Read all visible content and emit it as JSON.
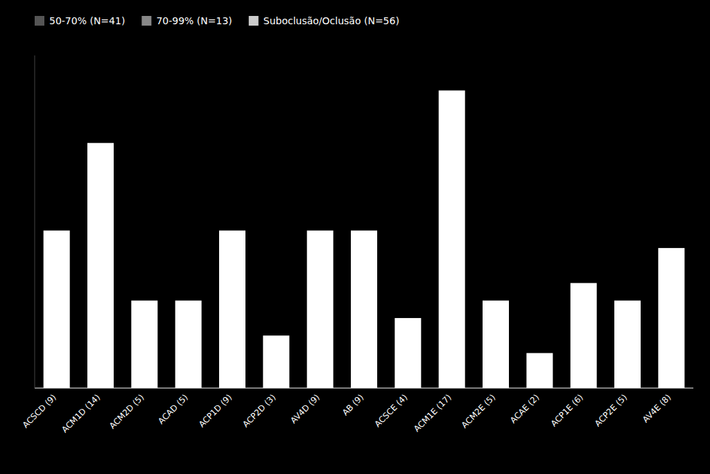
{
  "chart_data": {
    "type": "bar",
    "categories": [
      "ACSCD (9)",
      "ACM1D (14)",
      "ACM2D (5)",
      "ACAD (5)",
      "ACP1D (9)",
      "ACP2D (3)",
      "AV4D (9)",
      "AB (9)",
      "ACSCE (4)",
      "ACM1E (17)",
      "ACM2E (5)",
      "ACAE (2)",
      "ACP1E (6)",
      "ACP2E (5)",
      "AV4E (8)"
    ],
    "values": [
      9,
      14,
      5,
      5,
      9,
      3,
      9,
      9,
      4,
      17,
      5,
      2,
      6,
      5,
      8
    ],
    "color": "#ffffff",
    "ylim": [
      0,
      19
    ],
    "tick_labels": "x",
    "grid": false,
    "legend": "upper left",
    "legend_labels": [
      "50-70% (N=41)",
      "70-99% (N=13)",
      "Suboclusão/Oclusão (N=56)"
    ],
    "legend_colors": [
      "#555555",
      "#888888",
      "#cccccc"
    ]
  }
}
